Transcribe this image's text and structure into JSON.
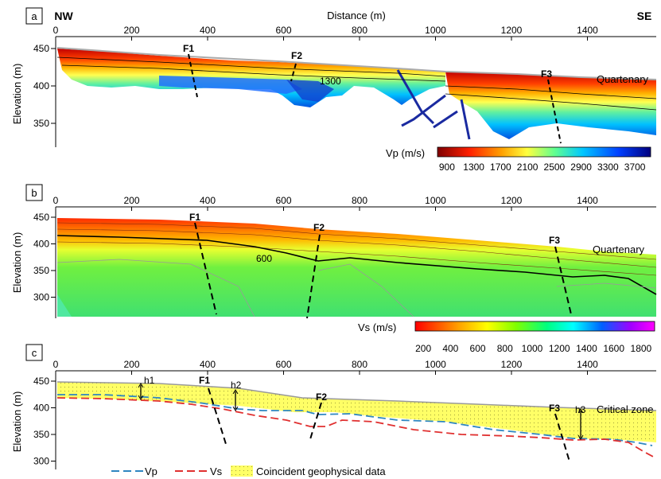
{
  "panels": {
    "a": {
      "letter": "a",
      "nw": "NW",
      "se": "SE",
      "top_axis_title": "Distance (m)",
      "ylabel": "Elevation (m)",
      "x_ticks": [
        "0",
        "200",
        "400",
        "600",
        "800",
        "1000",
        "1200",
        "1400"
      ],
      "y_ticks": [
        "450",
        "400",
        "350"
      ],
      "faults": [
        "F1",
        "F2",
        "F3"
      ],
      "layer_label": "Quartenary",
      "contour_label": "1300",
      "colorbar_title": "Vp (m/s)",
      "colorbar_ticks": [
        "900",
        "1300",
        "1700",
        "2100",
        "2500",
        "2900",
        "3300",
        "3700"
      ]
    },
    "b": {
      "letter": "b",
      "ylabel": "Elevation (m)",
      "x_ticks": [
        "0",
        "200",
        "400",
        "600",
        "800",
        "1000",
        "1200",
        "1400"
      ],
      "y_ticks": [
        "450",
        "400",
        "350",
        "300"
      ],
      "faults": [
        "F1",
        "F2",
        "F3"
      ],
      "layer_label": "Quartenary",
      "contour_label": "600",
      "colorbar_title": "Vs (m/s)",
      "colorbar_ticks": [
        "200",
        "400",
        "600",
        "800",
        "1000",
        "1200",
        "1400",
        "1600",
        "1800"
      ]
    },
    "c": {
      "letter": "c",
      "ylabel": "Elevation (m)",
      "x_ticks": [
        "0",
        "200",
        "400",
        "600",
        "800",
        "1000",
        "1200",
        "1400"
      ],
      "y_ticks": [
        "450",
        "400",
        "350",
        "300"
      ],
      "faults": [
        "F1",
        "F2",
        "F3"
      ],
      "thickness_labels": [
        "h1",
        "h2",
        "h3"
      ],
      "zone_label": "Critical zone",
      "legend": {
        "vp": "Vp",
        "vs": "Vs",
        "coincident": "Coincident geophysical data"
      }
    }
  },
  "colors": {
    "vp_line": "#2e86c1",
    "vs_line": "#e03030",
    "critical_zone_fill": "#ffff66",
    "topo_line": "#999999"
  }
}
